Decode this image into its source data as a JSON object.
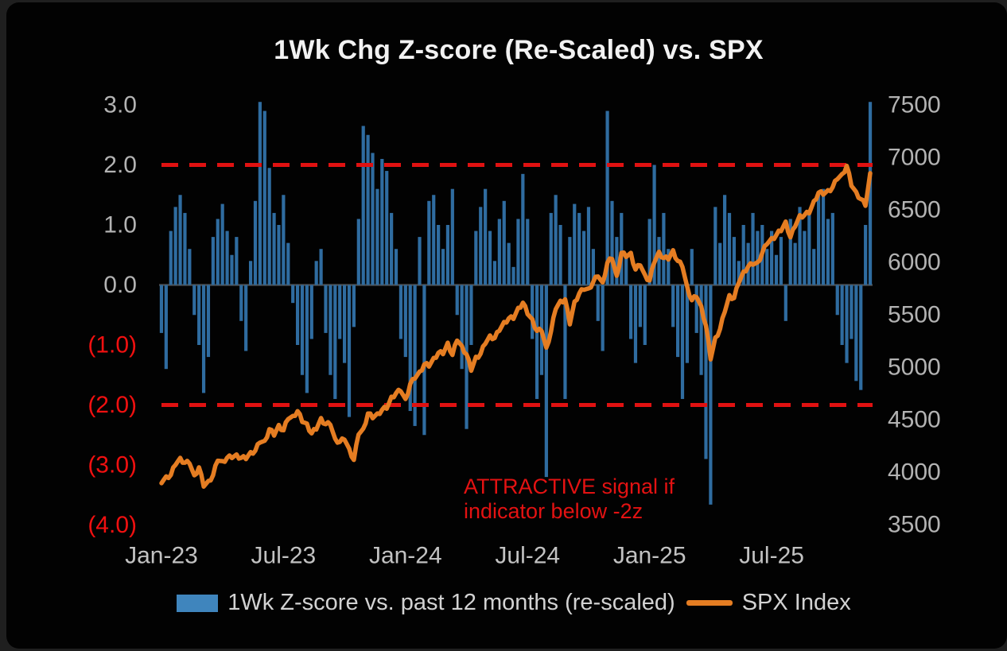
{
  "title": "1Wk Chg Z-score (Re-Scaled)  vs. SPX",
  "annotation": {
    "line1": "ATTRACTIVE signal if",
    "line2": "indicator below -2z"
  },
  "legend": {
    "bar_label": "1Wk Z-score vs. past 12 months (re-scaled)",
    "line_label": "SPX Index"
  },
  "colors": {
    "bar": "#2f6ca0",
    "bar_swatch": "#3f85bd",
    "spx_line": "#e57d22",
    "threshold": "#e01111",
    "positive_tick": "#b3b3b3",
    "negative_tick": "#f01010",
    "right_tick": "#b3b3b3",
    "x_tick": "#c2c2c2",
    "zero_line": "#4a4a4a",
    "title": "#f2f2f2",
    "annotation": "#e31212",
    "panel_bg": "#020202"
  },
  "chart_data": {
    "type": "combo-bar-line",
    "x_unit": "weekly",
    "x_start": "Jan-2023",
    "x_end": "Nov-2025",
    "x_ticks": [
      {
        "index": 0,
        "label": "Jan-23"
      },
      {
        "index": 26,
        "label": "Jul-23"
      },
      {
        "index": 52,
        "label": "Jan-24"
      },
      {
        "index": 78,
        "label": "Jul-24"
      },
      {
        "index": 104,
        "label": "Jan-25"
      },
      {
        "index": 130,
        "label": "Jul-25"
      }
    ],
    "left_axis": {
      "name": "1Wk Chg Z-score (re-scaled)",
      "range": [
        -4.2,
        3.25
      ],
      "ticks": [
        {
          "label": "3.0",
          "value": 3
        },
        {
          "label": "2.0",
          "value": 2
        },
        {
          "label": "1.0",
          "value": 1
        },
        {
          "label": "0.0",
          "value": 0
        },
        {
          "label": "(1.0)",
          "value": -1
        },
        {
          "label": "(2.0)",
          "value": -2
        },
        {
          "label": "(3.0)",
          "value": -3
        },
        {
          "label": "(4.0)",
          "value": -4
        }
      ]
    },
    "right_axis": {
      "name": "SPX Index",
      "range": [
        3380,
        7645
      ],
      "ticks": [
        7500,
        7000,
        6500,
        6000,
        5500,
        5000,
        4500,
        4000,
        3500
      ]
    },
    "thresholds": [
      {
        "axis": "left",
        "value": 2
      },
      {
        "axis": "left",
        "value": -2
      }
    ],
    "series": [
      {
        "name": "1Wk Z-score vs. past 12 months (re-scaled)",
        "type": "bar",
        "axis": "left",
        "values": [
          -0.8,
          -1.4,
          0.9,
          1.3,
          1.5,
          1.2,
          0.6,
          -0.5,
          -1.0,
          -1.8,
          -1.2,
          0.8,
          1.1,
          1.35,
          0.9,
          0.5,
          0.8,
          -0.6,
          -1.1,
          0.4,
          1.4,
          3.05,
          2.9,
          1.95,
          1.2,
          1.0,
          1.5,
          0.7,
          -0.3,
          -1.0,
          -1.5,
          -1.8,
          -0.9,
          0.4,
          0.6,
          -0.8,
          -1.5,
          -1.9,
          -0.9,
          -1.3,
          -2.2,
          -0.7,
          1.1,
          2.65,
          2.5,
          2.2,
          1.6,
          2.1,
          1.9,
          1.2,
          0.6,
          -0.9,
          -1.2,
          -2.1,
          -2.35,
          0.8,
          -2.5,
          1.4,
          1.5,
          1.0,
          0.6,
          1.0,
          1.6,
          -0.5,
          -1.4,
          -2.4,
          -1.0,
          0.9,
          1.3,
          1.6,
          0.9,
          0.4,
          1.1,
          1.4,
          0.7,
          0.3,
          1.1,
          1.85,
          1.1,
          -0.9,
          -1.9,
          -1.5,
          -3.2,
          1.2,
          1.5,
          1.0,
          -1.9,
          0.8,
          1.35,
          1.2,
          0.9,
          1.3,
          0.6,
          -0.6,
          -1.1,
          2.9,
          1.4,
          0.8,
          1.2,
          0.5,
          -0.9,
          -1.3,
          -0.7,
          -1.0,
          1.1,
          2.0,
          0.8,
          1.2,
          0.6,
          -0.7,
          -1.2,
          -1.9,
          -1.3,
          0.6,
          -0.8,
          -1.5,
          -2.9,
          -3.66,
          1.3,
          0.7,
          1.5,
          1.2,
          0.8,
          0.4,
          1.0,
          0.7,
          1.2,
          0.9,
          1.0,
          0.6,
          0.9,
          0.5,
          0.8,
          -0.6,
          1.1,
          0.7,
          1.3,
          0.9,
          1.2,
          0.6,
          1.5,
          1.6,
          1.1,
          1.2,
          -0.5,
          -1.0,
          -1.3,
          -0.9,
          -1.6,
          -1.75,
          1.0,
          3.05
        ]
      },
      {
        "name": "SPX Index",
        "type": "line",
        "axis": "right",
        "values": [
          3895,
          3960,
          3973,
          4070,
          4136,
          4090,
          4080,
          3970,
          4046,
          3862,
          3917,
          3971,
          4109,
          4105,
          4138,
          4134,
          4169,
          4136,
          4124,
          4192,
          4205,
          4282,
          4299,
          4410,
          4348,
          4450,
          4399,
          4505,
          4536,
          4582,
          4478,
          4464,
          4370,
          4406,
          4516,
          4457,
          4450,
          4320,
          4288,
          4309,
          4224,
          4117,
          4358,
          4415,
          4559,
          4514,
          4560,
          4594,
          4604,
          4719,
          4754,
          4770,
          4697,
          4840,
          4891,
          4959,
          5027,
          5006,
          5089,
          5137,
          5124,
          5234,
          5117,
          5254,
          5204,
          5123,
          4967,
          5100,
          5128,
          5223,
          5303,
          5278,
          5347,
          5432,
          5465,
          5460,
          5567,
          5615,
          5505,
          5459,
          5346,
          5344,
          5186,
          5344,
          5554,
          5634,
          5648,
          5408,
          5626,
          5703,
          5738,
          5751,
          5815,
          5865,
          5808,
          5996,
          6032,
          5871,
          6090,
          6051,
          6090,
          5931,
          5971,
          5882,
          5827,
          5997,
          6101,
          6041,
          6026,
          6115,
          6013,
          5955,
          5770,
          5639,
          5668,
          5581,
          5397,
          5074,
          5283,
          5363,
          5525,
          5687,
          5659,
          5803,
          5912,
          5960,
          5977,
          6000,
          6090,
          6173,
          6230,
          6260,
          6297,
          6389,
          6238,
          6340,
          6449,
          6450,
          6467,
          6584,
          6664,
          6644,
          6688,
          6715,
          6792,
          6841,
          6920,
          6729,
          6672,
          6602,
          6538,
          6849
        ]
      }
    ]
  }
}
